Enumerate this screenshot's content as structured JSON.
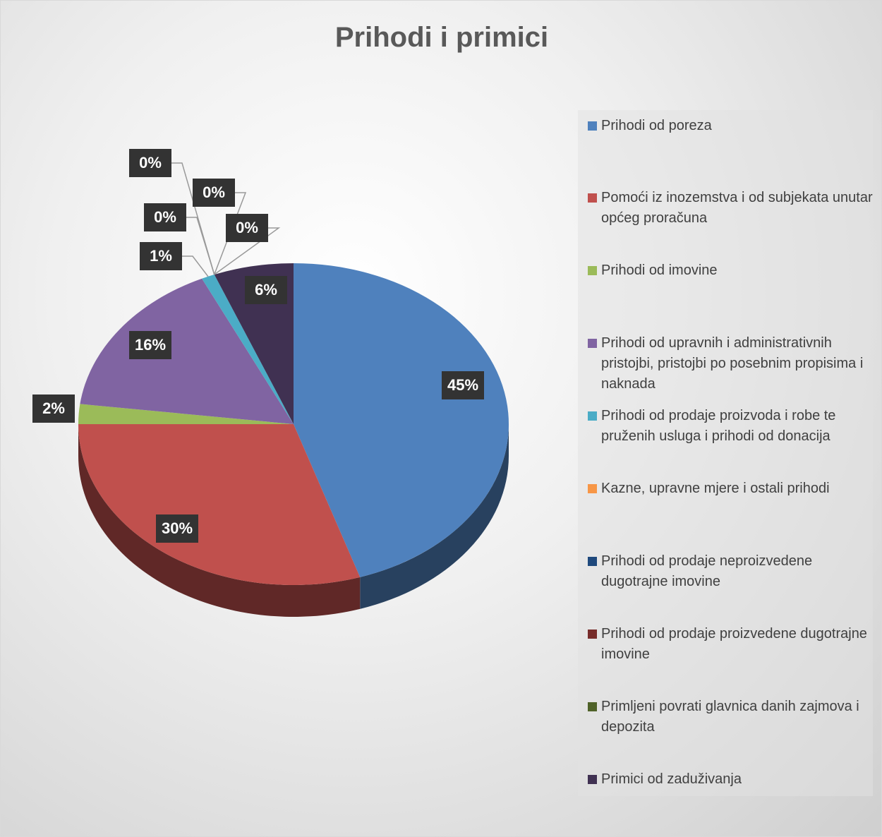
{
  "chart_data": {
    "type": "pie",
    "title": "Prihodi i primici",
    "categories": [
      "Prihodi od poreza",
      "Pomoći iz inozemstva i od subjekata unutar općeg proračuna",
      "Prihodi od imovine",
      "Prihodi od upravnih i administrativnih pristojbi, pristojbi  po posebnim propisima i naknada",
      "Prihodi od prodaje proizvoda i robe te pruženih usluga i prihodi od donacija",
      "Kazne, upravne mjere i ostali prihodi",
      "Prihodi od prodaje neproizvedene dugotrajne imovine",
      "Prihodi od prodaje proizvedene dugotrajne imovine",
      "Primljeni povrati glavnica danih zajmova i depozita",
      "Primici od zaduživanja"
    ],
    "values": [
      45,
      30,
      2,
      16,
      1,
      0,
      0,
      0,
      0,
      6
    ],
    "value_labels": [
      "45%",
      "30%",
      "2%",
      "16%",
      "1%",
      "0%",
      "0%",
      "0%",
      "0%",
      "6%"
    ],
    "colors": [
      "#4f81bd",
      "#c0504d",
      "#9bbb59",
      "#8064a2",
      "#4bacc6",
      "#f79646",
      "#1f497d",
      "#772c2a",
      "#4f6228",
      "#403152"
    ],
    "legend": "right"
  }
}
